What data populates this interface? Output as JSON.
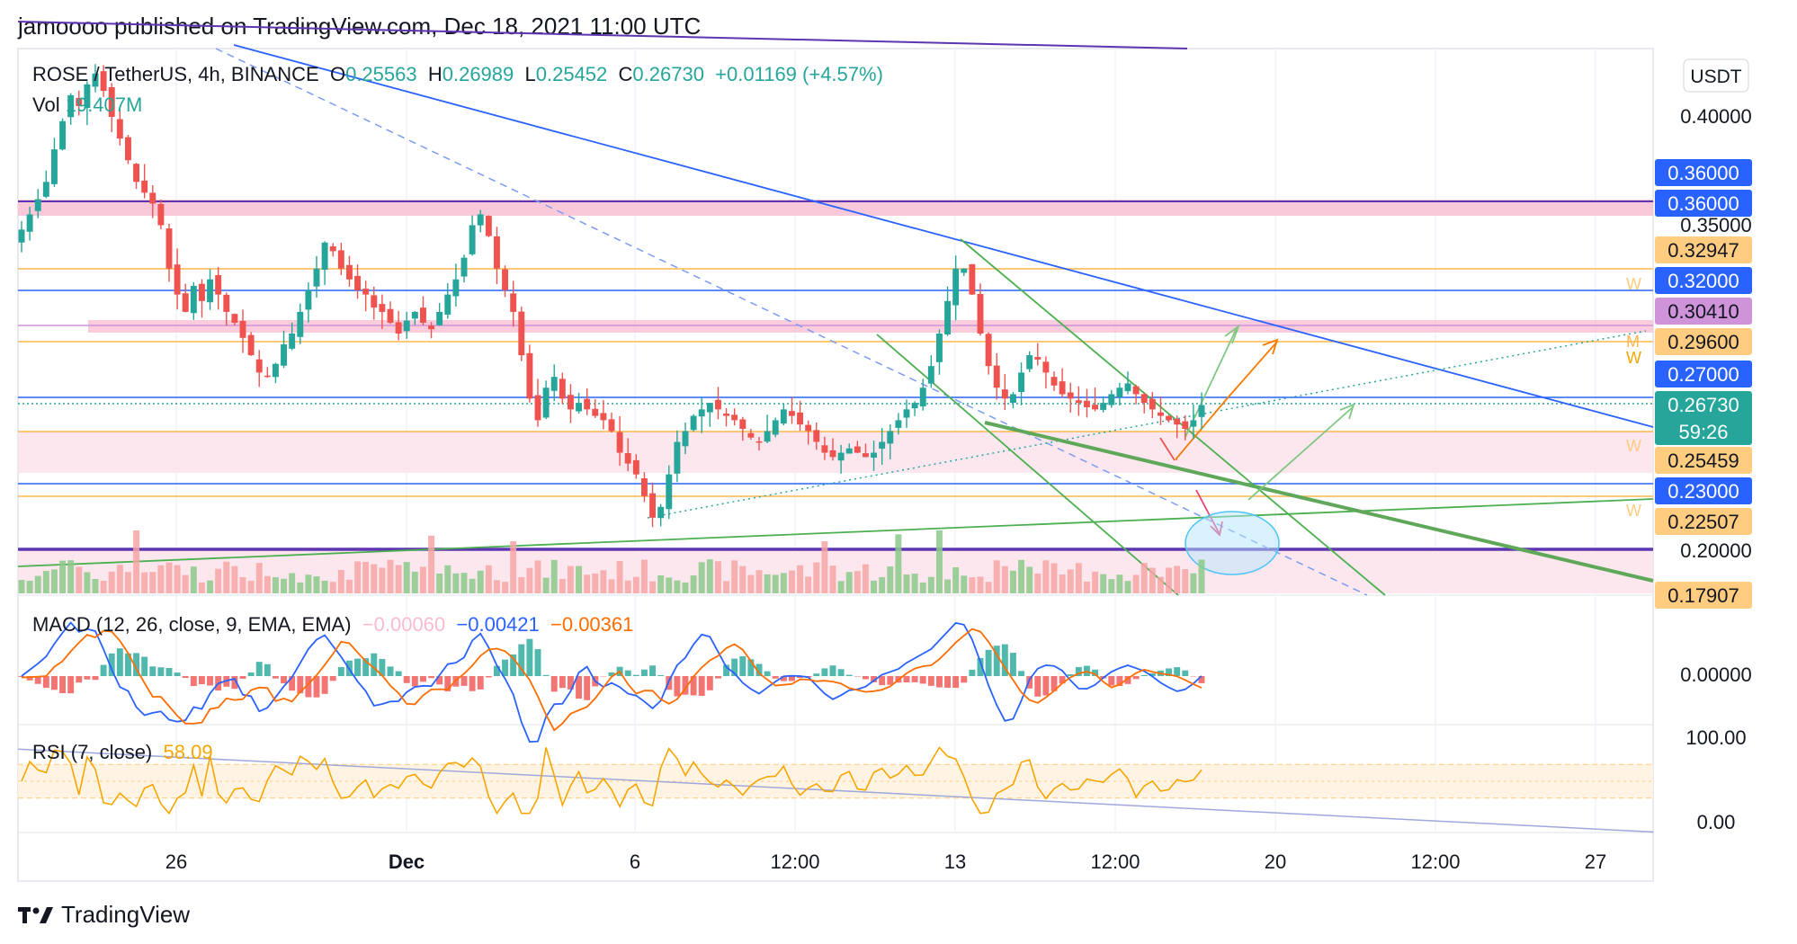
{
  "header": {
    "published": "jamoooo published on TradingView.com, Dec 18, 2021 11:00 UTC"
  },
  "footer": {
    "brand": "TradingView"
  },
  "legend": {
    "symbol": "ROSE / TetherUS, 4h, BINANCE",
    "o_label": "O",
    "o": "0.25563",
    "h_label": "H",
    "h": "0.26989",
    "l_label": "L",
    "l": "0.25452",
    "c_label": "C",
    "c": "0.26730",
    "change": "+0.01169 (+4.57%)",
    "vol_label": "Vol",
    "vol": "19.407M"
  },
  "macd": {
    "label": "MACD (12, 26, close, 9, EMA, EMA)",
    "hist": "−0.00060",
    "macd": "−0.00421",
    "signal": "−0.00361",
    "axis": "0.00000"
  },
  "rsi": {
    "label": "RSI (7, close)",
    "value": "58.09",
    "axis_top": "100.00",
    "axis_bottom": "0.00"
  },
  "colors": {
    "up": "#26a69a",
    "down": "#ef5350",
    "blue": "#2962ff",
    "orange": "#f7a600",
    "pink": "#f8bbd0",
    "purple": "#673ab7",
    "green": "#4caf50"
  },
  "chart_data": {
    "type": "candlestick",
    "title": "ROSE / TetherUS, 4h, BINANCE",
    "currency": "USDT",
    "ylim": [
      0.175,
      0.425
    ],
    "y_ticks": [
      "0.40000",
      "0.35000",
      "0.20000"
    ],
    "x_ticks": [
      "26",
      "Dec",
      "6",
      "12:00",
      "13",
      "12:00",
      "20",
      "12:00",
      "27"
    ],
    "price_badges": [
      {
        "value": "0.36000",
        "color": "#2962ff"
      },
      {
        "value": "0.36000",
        "color": "#2962ff"
      },
      {
        "value": "0.32947",
        "color": "#ffcc80"
      },
      {
        "value": "0.32000",
        "color": "#2962ff"
      },
      {
        "value": "0.30410",
        "color": "#ce93d8"
      },
      {
        "value": "0.29600",
        "color": "#ffcc80"
      },
      {
        "value": "0.27000",
        "color": "#2962ff"
      },
      {
        "value": "0.26730",
        "color": "#26a69a",
        "sub": "59:26"
      },
      {
        "value": "0.25459",
        "color": "#ffcc80"
      },
      {
        "value": "0.23000",
        "color": "#2962ff"
      },
      {
        "value": "0.22507",
        "color": "#ffcc80"
      },
      {
        "value": "0.17907",
        "color": "#ffcc80"
      }
    ],
    "close_series": [
      0.348,
      0.355,
      0.362,
      0.37,
      0.385,
      0.398,
      0.41,
      0.405,
      0.415,
      0.42,
      0.412,
      0.4,
      0.39,
      0.38,
      0.37,
      0.365,
      0.36,
      0.35,
      0.33,
      0.318,
      0.31,
      0.322,
      0.315,
      0.325,
      0.318,
      0.31,
      0.305,
      0.298,
      0.29,
      0.282,
      0.28,
      0.286,
      0.295,
      0.3,
      0.31,
      0.32,
      0.33,
      0.342,
      0.338,
      0.33,
      0.325,
      0.32,
      0.318,
      0.312,
      0.31,
      0.305,
      0.3,
      0.306,
      0.31,
      0.305,
      0.302,
      0.31,
      0.318,
      0.325,
      0.335,
      0.35,
      0.355,
      0.345,
      0.33,
      0.32,
      0.31,
      0.29,
      0.27,
      0.26,
      0.275,
      0.28,
      0.27,
      0.265,
      0.268,
      0.265,
      0.262,
      0.26,
      0.255,
      0.245,
      0.24,
      0.235,
      0.225,
      0.215,
      0.22,
      0.235,
      0.25,
      0.255,
      0.262,
      0.265,
      0.268,
      0.265,
      0.262,
      0.26,
      0.256,
      0.252,
      0.25,
      0.255,
      0.26,
      0.265,
      0.262,
      0.258,
      0.255,
      0.25,
      0.245,
      0.243,
      0.245,
      0.247,
      0.245,
      0.243,
      0.245,
      0.25,
      0.255,
      0.26,
      0.265,
      0.268,
      0.275,
      0.285,
      0.3,
      0.315,
      0.33,
      0.33,
      0.318,
      0.3,
      0.285,
      0.275,
      0.27,
      0.272,
      0.282,
      0.29,
      0.288,
      0.282,
      0.276,
      0.272,
      0.27,
      0.268,
      0.266,
      0.265,
      0.268,
      0.272,
      0.275,
      0.277,
      0.272,
      0.268,
      0.265,
      0.262,
      0.26,
      0.258,
      0.256,
      0.26,
      0.267
    ],
    "annotations": [
      "W",
      "W",
      "W",
      "W",
      "M"
    ]
  }
}
